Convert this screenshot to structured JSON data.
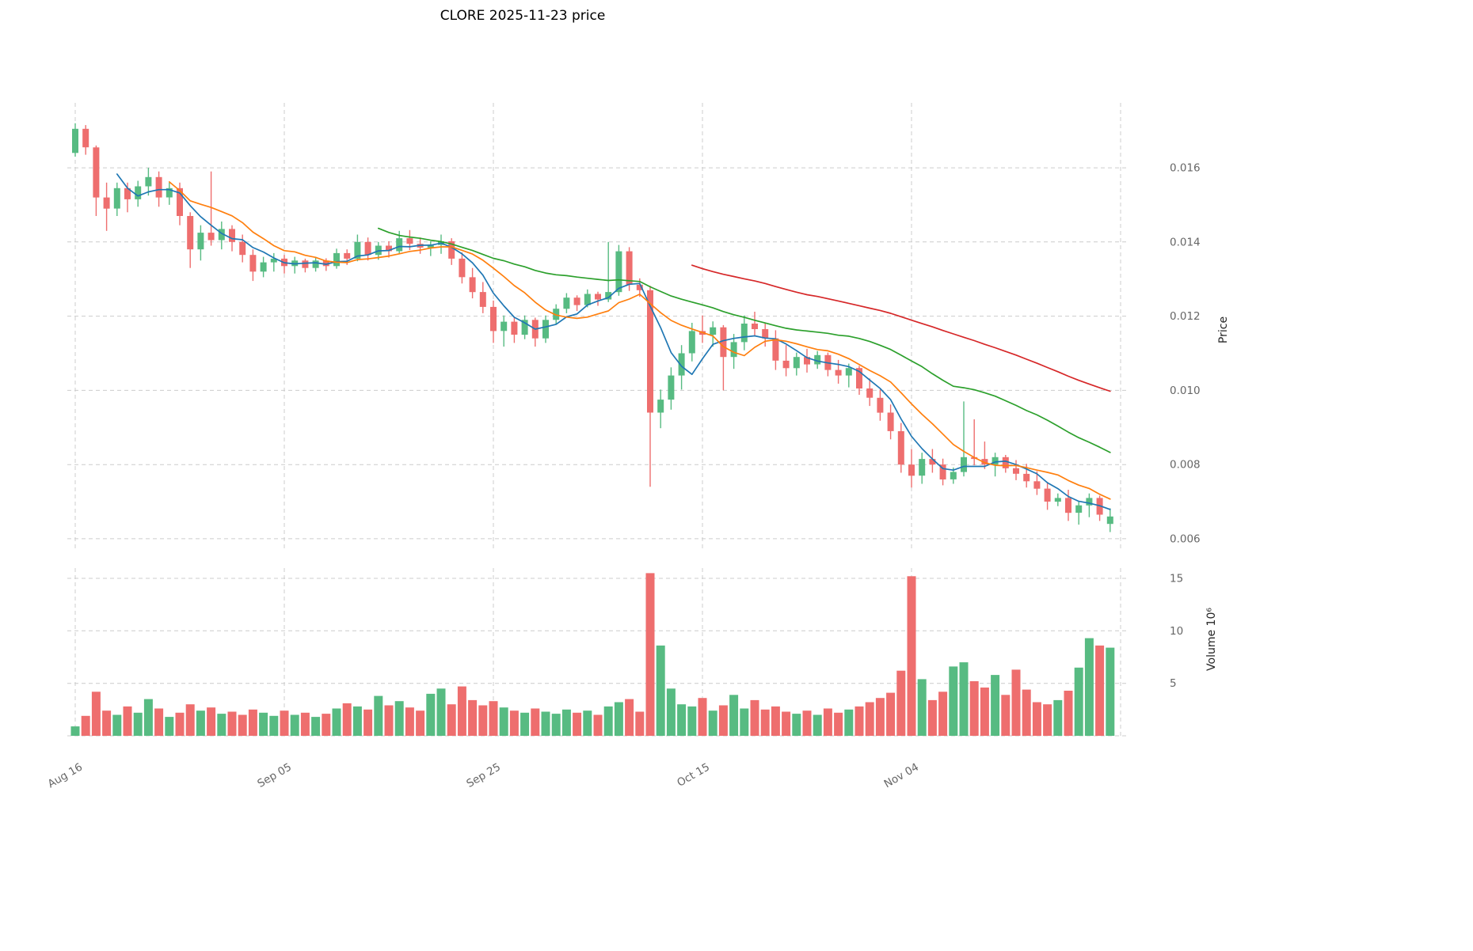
{
  "title": "CLORE  2025-11-23  price",
  "axes": {
    "price_label": "Price",
    "volume_label": "Volume  10⁶"
  },
  "chart_data": {
    "type": "candlestick+volume",
    "symbol": "CLORE",
    "as_of_date": "2025-11-23",
    "x_ticks": [
      {
        "label": "Aug 16",
        "day": 0
      },
      {
        "label": "Sep 05",
        "day": 20
      },
      {
        "label": "Sep 25",
        "day": 40
      },
      {
        "label": "Oct 15",
        "day": 60
      },
      {
        "label": "Nov 04",
        "day": 80
      }
    ],
    "grid_days": [
      0,
      20,
      40,
      60,
      80,
      100
    ],
    "price_ticks": [
      {
        "value": 0.006,
        "label": "0.006"
      },
      {
        "value": 0.008,
        "label": "0.008"
      },
      {
        "value": 0.01,
        "label": "0.010"
      },
      {
        "value": 0.012,
        "label": "0.012"
      },
      {
        "value": 0.014,
        "label": "0.014"
      },
      {
        "value": 0.016,
        "label": "0.016"
      }
    ],
    "volume_ticks": [
      {
        "value": 5,
        "label": "5"
      },
      {
        "value": 10,
        "label": "10"
      },
      {
        "value": 15,
        "label": "15"
      }
    ],
    "price_display_range": [
      0.0057,
      0.01775
    ],
    "volume_display_max": 15,
    "volume_unit": "10^6",
    "colors": {
      "up": "#57bb82",
      "down": "#ee6e6e",
      "grid": "#cccccc",
      "tick_text": "#666666",
      "ma_blue": "#1f77b4",
      "ma_orange": "#ff7f0e",
      "ma_green": "#2ca02c",
      "ma_red": "#d62728"
    },
    "moving_averages": [
      {
        "name": "SMA5",
        "window": 5,
        "color": "#1f77b4"
      },
      {
        "name": "SMA10",
        "window": 10,
        "color": "#ff7f0e"
      },
      {
        "name": "SMA30",
        "window": 30,
        "color": "#2ca02c"
      },
      {
        "name": "SMA60",
        "window": 60,
        "color": "#d62728"
      }
    ],
    "open": [
      0.0164,
      0.01705,
      0.01655,
      0.0152,
      0.0149,
      0.01545,
      0.01515,
      0.0155,
      0.01575,
      0.0152,
      0.01545,
      0.0147,
      0.0138,
      0.01425,
      0.01405,
      0.01435,
      0.014,
      0.01365,
      0.0132,
      0.01345,
      0.01355,
      0.01335,
      0.0135,
      0.0133,
      0.0135,
      0.01335,
      0.0137,
      0.01355,
      0.014,
      0.01365,
      0.0139,
      0.01375,
      0.0141,
      0.01395,
      0.01385,
      0.01392,
      0.01402,
      0.01355,
      0.01305,
      0.01265,
      0.01225,
      0.0116,
      0.01185,
      0.0115,
      0.0119,
      0.0114,
      0.0119,
      0.0122,
      0.0125,
      0.0123,
      0.0126,
      0.01245,
      0.01265,
      0.01375,
      0.01285,
      0.0127,
      0.0094,
      0.00975,
      0.0104,
      0.011,
      0.0116,
      0.0115,
      0.0117,
      0.0109,
      0.0113,
      0.0118,
      0.01165,
      0.0114,
      0.0108,
      0.0106,
      0.0109,
      0.0107,
      0.01095,
      0.01055,
      0.0104,
      0.0106,
      0.01005,
      0.0098,
      0.0094,
      0.0089,
      0.008,
      0.0077,
      0.00815,
      0.008,
      0.0076,
      0.0078,
      0.0082,
      0.00815,
      0.008,
      0.0082,
      0.0079,
      0.00775,
      0.00755,
      0.00735,
      0.007,
      0.0071,
      0.0067,
      0.0069,
      0.0071,
      0.0064
    ],
    "high": [
      0.0172,
      0.01715,
      0.0166,
      0.0156,
      0.0156,
      0.0156,
      0.01565,
      0.016,
      0.0159,
      0.0156,
      0.0156,
      0.0148,
      0.01445,
      0.0159,
      0.01455,
      0.01445,
      0.0142,
      0.0138,
      0.0136,
      0.0137,
      0.01365,
      0.0136,
      0.01355,
      0.0136,
      0.01356,
      0.01382,
      0.0138,
      0.0142,
      0.01412,
      0.014,
      0.01402,
      0.0143,
      0.01432,
      0.01412,
      0.01402,
      0.0142,
      0.0141,
      0.01372,
      0.0133,
      0.01292,
      0.01242,
      0.01202,
      0.01196,
      0.01202,
      0.01196,
      0.01202,
      0.01232,
      0.01262,
      0.01256,
      0.01272,
      0.01266,
      0.014,
      0.01392,
      0.01386,
      0.01302,
      0.01282,
      0.01002,
      0.01062,
      0.01122,
      0.01182,
      0.01202,
      0.01186,
      0.01176,
      0.01152,
      0.01202,
      0.01212,
      0.01182,
      0.01162,
      0.01122,
      0.01102,
      0.01112,
      0.01106,
      0.01102,
      0.01082,
      0.01072,
      0.01066,
      0.01032,
      0.01002,
      0.00962,
      0.00912,
      0.00842,
      0.00832,
      0.00842,
      0.00816,
      0.00792,
      0.0097,
      0.00922,
      0.00862,
      0.00832,
      0.00826,
      0.00812,
      0.00802,
      0.00782,
      0.00752,
      0.00722,
      0.00732,
      0.00702,
      0.00722,
      0.00716,
      0.00682
    ],
    "low": [
      0.0163,
      0.01635,
      0.0147,
      0.0143,
      0.0147,
      0.0148,
      0.01495,
      0.01525,
      0.01495,
      0.015,
      0.01445,
      0.0133,
      0.0135,
      0.0139,
      0.0138,
      0.01375,
      0.01345,
      0.01295,
      0.01305,
      0.0132,
      0.01315,
      0.01315,
      0.01318,
      0.0132,
      0.01322,
      0.01328,
      0.01338,
      0.01348,
      0.0135,
      0.01352,
      0.01358,
      0.01368,
      0.01378,
      0.01368,
      0.01362,
      0.01368,
      0.01338,
      0.01288,
      0.01248,
      0.01208,
      0.01128,
      0.01118,
      0.01128,
      0.01138,
      0.01118,
      0.01128,
      0.01178,
      0.01208,
      0.01214,
      0.01224,
      0.01228,
      0.01238,
      0.01255,
      0.01268,
      0.01252,
      0.0074,
      0.00898,
      0.00948,
      0.01002,
      0.01078,
      0.01128,
      0.01118,
      0.01,
      0.01058,
      0.01108,
      0.01148,
      0.01118,
      0.01055,
      0.01038,
      0.0104,
      0.01048,
      0.01058,
      0.01038,
      0.01018,
      0.01008,
      0.00988,
      0.00958,
      0.00918,
      0.00868,
      0.00778,
      0.00738,
      0.00748,
      0.00778,
      0.00744,
      0.00748,
      0.00768,
      0.00798,
      0.00788,
      0.00768,
      0.00778,
      0.00758,
      0.00738,
      0.00718,
      0.00678,
      0.00688,
      0.00648,
      0.00638,
      0.00658,
      0.00648,
      0.00618
    ],
    "close": [
      0.01705,
      0.01655,
      0.0152,
      0.0149,
      0.01545,
      0.01515,
      0.0155,
      0.01575,
      0.0152,
      0.01545,
      0.0147,
      0.0138,
      0.01425,
      0.01405,
      0.01435,
      0.014,
      0.01365,
      0.0132,
      0.01345,
      0.01355,
      0.01335,
      0.0135,
      0.0133,
      0.0135,
      0.01335,
      0.0137,
      0.01355,
      0.014,
      0.01365,
      0.0139,
      0.01375,
      0.0141,
      0.01395,
      0.01385,
      0.01392,
      0.01402,
      0.01355,
      0.01305,
      0.01265,
      0.01225,
      0.0116,
      0.01185,
      0.0115,
      0.0119,
      0.0114,
      0.0119,
      0.0122,
      0.0125,
      0.0123,
      0.0126,
      0.01245,
      0.01265,
      0.01375,
      0.01285,
      0.0127,
      0.0094,
      0.00975,
      0.0104,
      0.011,
      0.0116,
      0.0115,
      0.0117,
      0.0109,
      0.0113,
      0.0118,
      0.01165,
      0.0114,
      0.0108,
      0.0106,
      0.0109,
      0.0107,
      0.01095,
      0.01055,
      0.0104,
      0.0106,
      0.01005,
      0.0098,
      0.0094,
      0.0089,
      0.008,
      0.0077,
      0.00815,
      0.008,
      0.0076,
      0.0078,
      0.0082,
      0.00815,
      0.008,
      0.0082,
      0.0079,
      0.00775,
      0.00755,
      0.00735,
      0.007,
      0.0071,
      0.0067,
      0.0069,
      0.0071,
      0.00665,
      0.0066
    ],
    "volume": [
      0.9,
      1.9,
      4.2,
      2.4,
      2.0,
      2.8,
      2.2,
      3.5,
      2.6,
      1.8,
      2.2,
      3.0,
      2.4,
      2.7,
      2.1,
      2.3,
      2.0,
      2.5,
      2.2,
      1.9,
      2.4,
      2.0,
      2.2,
      1.8,
      2.1,
      2.6,
      3.1,
      2.8,
      2.5,
      3.8,
      2.9,
      3.3,
      2.7,
      2.4,
      4.0,
      4.5,
      3.0,
      4.7,
      3.4,
      2.9,
      3.3,
      2.7,
      2.4,
      2.2,
      2.6,
      2.3,
      2.1,
      2.5,
      2.2,
      2.4,
      2.0,
      2.8,
      3.2,
      3.5,
      2.3,
      15.5,
      8.6,
      4.5,
      3.0,
      2.8,
      3.6,
      2.4,
      2.9,
      3.9,
      2.6,
      3.4,
      2.5,
      2.8,
      2.3,
      2.1,
      2.4,
      2.0,
      2.6,
      2.2,
      2.5,
      2.8,
      3.2,
      3.6,
      4.1,
      6.2,
      15.2,
      5.4,
      3.4,
      4.2,
      6.6,
      7.0,
      5.2,
      4.6,
      5.8,
      3.9,
      6.3,
      4.4,
      3.2,
      3.0,
      3.4,
      4.3,
      6.5,
      9.3,
      8.6,
      8.4
    ]
  }
}
